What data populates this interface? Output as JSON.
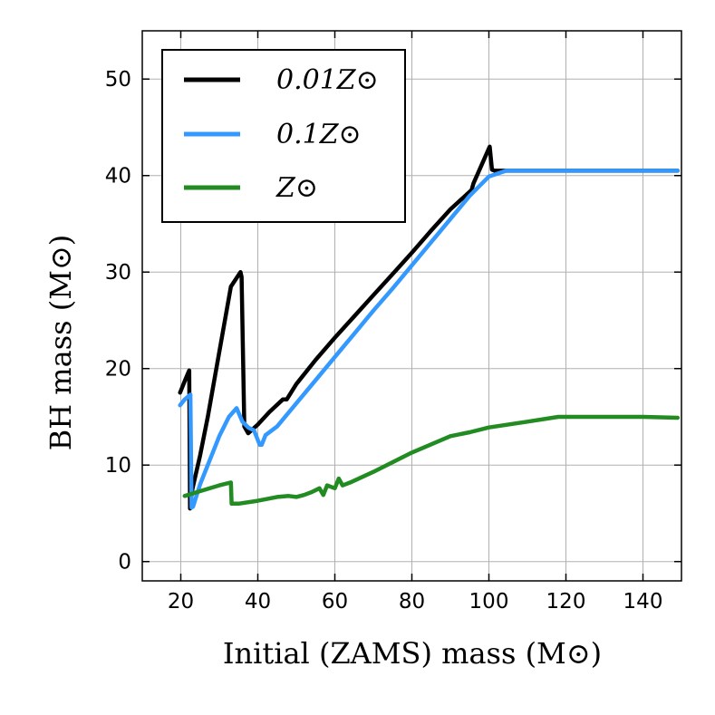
{
  "chart_data": {
    "type": "line",
    "title": "",
    "xlabel": "Initial (ZAMS) mass (M⊙)",
    "ylabel": "BH mass (M⊙)",
    "xlim": [
      10,
      150
    ],
    "ylim": [
      -2,
      55
    ],
    "xticks": [
      20,
      40,
      60,
      80,
      100,
      120,
      140
    ],
    "yticks": [
      0,
      10,
      20,
      30,
      40,
      50
    ],
    "grid": true,
    "legend_position": "top-left",
    "series": [
      {
        "name": "0.01Z⊙",
        "color": "#000000",
        "x": [
          19.8,
          21,
          22.2,
          22.4,
          23,
          25,
          27,
          29,
          31,
          33,
          35.5,
          35.8,
          36.5,
          37.5,
          40,
          43,
          46.5,
          47.5,
          50,
          55,
          60,
          65,
          70,
          75,
          80,
          85,
          90,
          95.5,
          96,
          100.2,
          100.8,
          101.5,
          102,
          104,
          110,
          120,
          130,
          140,
          149
        ],
        "y": [
          17.5,
          18.7,
          19.8,
          5.5,
          7.5,
          11,
          15,
          19.5,
          24,
          28.5,
          30,
          29.5,
          14,
          13.3,
          14.2,
          15.5,
          16.8,
          16.8,
          18.4,
          20.9,
          23.2,
          25.4,
          27.6,
          29.8,
          32,
          34.3,
          36.5,
          38.5,
          39.2,
          43,
          40.6,
          40.5,
          40.5,
          40.5,
          40.5,
          40.5,
          40.5,
          40.5,
          40.5
        ]
      },
      {
        "name": "0.1Z⊙",
        "color": "#3399ff",
        "x": [
          19.8,
          21,
          22.5,
          22.8,
          23.2,
          25,
          27.5,
          30,
          32.5,
          34.5,
          36,
          37.5,
          39,
          40.5,
          41,
          42,
          45,
          50,
          55,
          60,
          65,
          70,
          75,
          80,
          85,
          90,
          95,
          100,
          104.5,
          110,
          120,
          130,
          140,
          149
        ],
        "y": [
          16.2,
          16.8,
          17.3,
          5.6,
          5.7,
          8,
          10.5,
          13,
          15,
          15.9,
          14.5,
          13.9,
          13.6,
          12.1,
          12.1,
          13.1,
          14,
          16.4,
          18.8,
          21.2,
          23.6,
          26,
          28.3,
          30.7,
          33.1,
          35.5,
          37.9,
          39.9,
          40.5,
          40.5,
          40.5,
          40.5,
          40.5,
          40.5
        ]
      },
      {
        "name": "Z⊙",
        "color": "#228b22",
        "x": [
          21,
          25,
          30,
          33,
          33.2,
          35,
          40,
          45,
          48,
          50,
          52,
          54,
          56,
          57,
          58,
          60,
          61,
          62,
          64,
          70,
          80,
          90,
          95,
          100,
          110,
          118,
          120,
          130,
          140,
          149
        ],
        "y": [
          6.8,
          7.3,
          7.9,
          8.2,
          6.0,
          6.0,
          6.3,
          6.7,
          6.8,
          6.7,
          6.9,
          7.2,
          7.6,
          6.9,
          7.9,
          7.6,
          8.6,
          7.9,
          8.2,
          9.3,
          11.3,
          13.0,
          13.4,
          13.9,
          14.5,
          15.0,
          15.0,
          15.0,
          15.0,
          14.9
        ]
      }
    ]
  },
  "legend": {
    "items": [
      "0.01Z⊙",
      "0.1Z⊙",
      "Z⊙"
    ]
  }
}
